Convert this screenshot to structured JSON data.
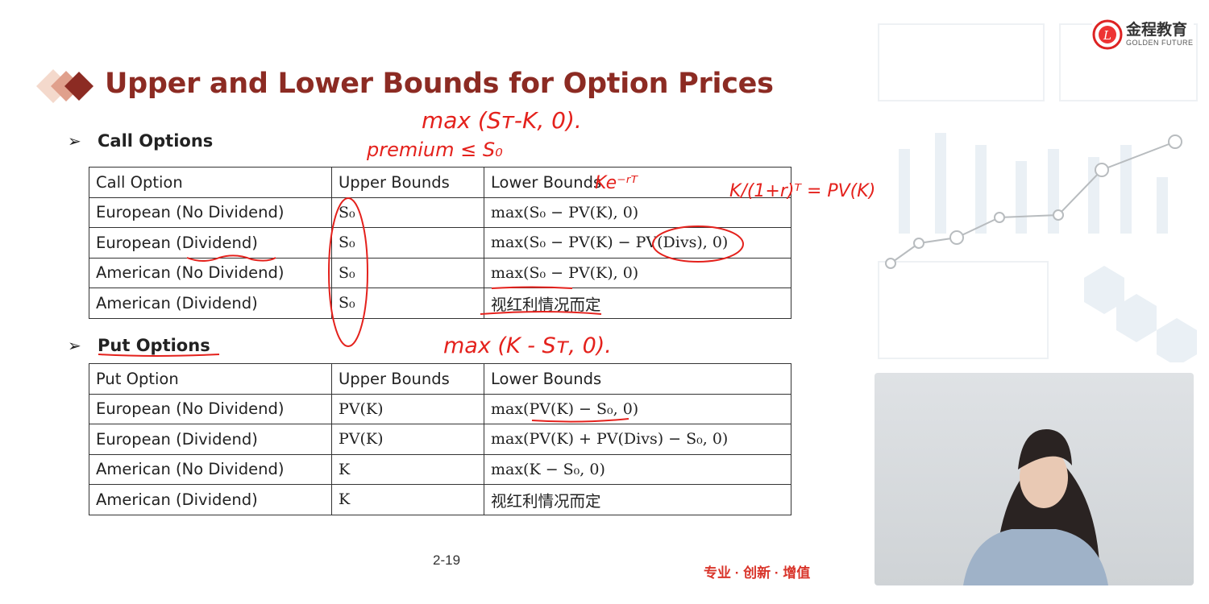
{
  "slide": {
    "title": "Upper and Lower Bounds for Option Prices",
    "page_number": "2-19",
    "slogan": "专业 · 创新 · 增值",
    "accent_color": "#8c2b23",
    "annotation_color": "#e4211c"
  },
  "logo": {
    "name_cn": "金程教育",
    "name_en": "GOLDEN FUTURE",
    "icon": "golden-future-seal-icon"
  },
  "call_section": {
    "heading": "Call Options",
    "headers": [
      "Call Option",
      "Upper Bounds",
      "Lower Bounds"
    ],
    "rows": [
      {
        "type": "European (No Dividend)",
        "upper": "S₀",
        "lower": "max(S₀ − PV(K), 0)"
      },
      {
        "type": "European (Dividend)",
        "upper": "S₀",
        "lower": "max(S₀ − PV(K) − PV(Divs), 0)"
      },
      {
        "type": "American (No Dividend)",
        "upper": "S₀",
        "lower": "max(S₀ − PV(K), 0)"
      },
      {
        "type": "American (Dividend)",
        "upper": "S₀",
        "lower": "视红利情况而定"
      }
    ]
  },
  "put_section": {
    "heading": "Put Options",
    "headers": [
      "Put Option",
      "Upper Bounds",
      "Lower Bounds"
    ],
    "rows": [
      {
        "type": "European (No Dividend)",
        "upper": "PV(K)",
        "lower": "max(PV(K) − S₀, 0)"
      },
      {
        "type": "European (Dividend)",
        "upper": "PV(K)",
        "lower": "max(PV(K) + PV(Divs) − S₀, 0)"
      },
      {
        "type": "American (No Dividend)",
        "upper": "K",
        "lower": "max(K − S₀, 0)"
      },
      {
        "type": "American (Dividend)",
        "upper": "K",
        "lower": "视红利情况而定"
      }
    ]
  },
  "annotations": {
    "call_payoff": "max (Sᴛ-K, 0).",
    "premium": "premium ≤ S₀",
    "ke_rt": "Ke⁻ʳᵀ",
    "pv_k": "K/(1+r)ᵀ = PV(K)",
    "put_payoff": "max (K - Sᴛ, 0)."
  },
  "video": {
    "description_icon": "presenter-video-icon"
  }
}
